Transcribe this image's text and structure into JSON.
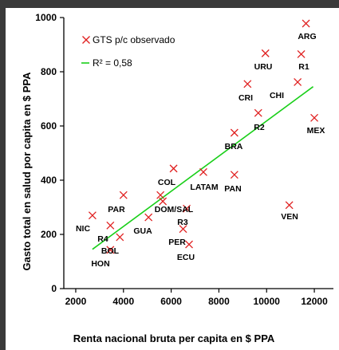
{
  "chart_data": {
    "type": "scatter",
    "xlabel": "Renta nacional bruta per  capita en $ PPA",
    "ylabel": "Gasto total en salud por capita en $ PPA",
    "xlim": [
      1500,
      12800
    ],
    "ylim": [
      0,
      1000
    ],
    "x_ticks": [
      "2000",
      "4000",
      "6000",
      "8000",
      "10000",
      "12000"
    ],
    "y_ticks": [
      "0",
      "200",
      "400",
      "600",
      "800",
      "1000"
    ],
    "grid": false,
    "legend_position": "top-left",
    "legend": [
      {
        "label": "GTS p/c observado",
        "marker": "x",
        "color": "#e02020"
      },
      {
        "label": "R² = 0,58",
        "marker": "line",
        "color": "#19cf19"
      }
    ],
    "series": [
      {
        "name": "GTS p/c observado",
        "color": "#e02020",
        "points": [
          {
            "label": "NIC",
            "x": 2700,
            "y": 270
          },
          {
            "label": "R4",
            "x": 3450,
            "y": 233
          },
          {
            "label": "HON",
            "x": 3450,
            "y": 143
          },
          {
            "label": "BOL",
            "x": 3850,
            "y": 190
          },
          {
            "label": "PAR",
            "x": 4000,
            "y": 345
          },
          {
            "label": "GUA",
            "x": 5050,
            "y": 263
          },
          {
            "label": "DOM",
            "x": 5550,
            "y": 345
          },
          {
            "label": "SAL",
            "x": 5650,
            "y": 322
          },
          {
            "label": "COL",
            "x": 6100,
            "y": 443
          },
          {
            "label": "R3",
            "x": 6650,
            "y": 295
          },
          {
            "label": "PER",
            "x": 6500,
            "y": 220
          },
          {
            "label": "ECU",
            "x": 6750,
            "y": 163
          },
          {
            "label": "LATAM",
            "x": 7350,
            "y": 430
          },
          {
            "label": "PAN",
            "x": 8650,
            "y": 420
          },
          {
            "label": "BRA",
            "x": 8650,
            "y": 575
          },
          {
            "label": "CRI",
            "x": 9200,
            "y": 755
          },
          {
            "label": "R2",
            "x": 9650,
            "y": 648
          },
          {
            "label": "URU",
            "x": 9950,
            "y": 868
          },
          {
            "label": "VEN",
            "x": 10950,
            "y": 308
          },
          {
            "label": "CHI",
            "x": 11300,
            "y": 762
          },
          {
            "label": "R1",
            "x": 11450,
            "y": 865
          },
          {
            "label": "ARG",
            "x": 11650,
            "y": 978
          },
          {
            "label": "MEX",
            "x": 12000,
            "y": 630
          }
        ]
      }
    ],
    "trendline": {
      "label": "R² = 0,58",
      "color": "#19cf19",
      "x": [
        2700,
        11950
      ],
      "y": [
        145,
        745
      ]
    },
    "point_label_texts": [
      "NIC",
      "R4",
      "HON",
      "BOL",
      "PAR",
      "GUA",
      "DOM/SAL",
      "COL",
      "R3",
      "PER",
      "ECU",
      "LATAM",
      "PAN",
      "BRA",
      "CRI",
      "R2",
      "URU",
      "VEN",
      "CHI",
      "R1",
      "ARG",
      "MEX"
    ]
  }
}
